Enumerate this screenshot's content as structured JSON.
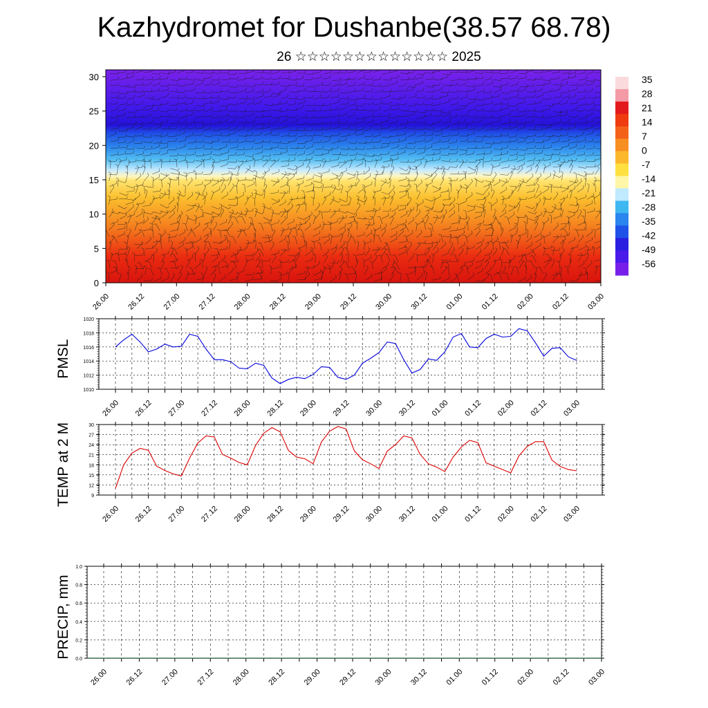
{
  "title": "Kazhydromet for Dushanbe(38.57 68.78)",
  "subtitle": "26 ☆☆☆☆☆☆☆☆☆☆☆☆☆ 2025",
  "colors": {
    "pmsl_line": "#0000dd",
    "temp_line": "#dd0000",
    "grid": "#000000"
  },
  "chart_data": [
    {
      "type": "heatmap",
      "name": "cross-section",
      "y_ticks": [
        0,
        5,
        10,
        15,
        20,
        25,
        30
      ],
      "ylim": [
        0,
        31
      ],
      "x_ticks": [
        "26.00",
        "26.12",
        "27.00",
        "27.12",
        "28.00",
        "28.12",
        "29.00",
        "29.12",
        "30.00",
        "30.12",
        "01.00",
        "01.12",
        "02.00",
        "02.12",
        "03.00"
      ],
      "colorbar": {
        "labels": [
          "35",
          "28",
          "21",
          "14",
          "7",
          "0",
          "-7",
          "-14",
          "-21",
          "-28",
          "-35",
          "-42",
          "-49",
          "-56"
        ],
        "stops": [
          "#fadadd",
          "#f39aa6",
          "#e31a1c",
          "#f03a10",
          "#f4621a",
          "#f88f22",
          "#fcb82c",
          "#ffe040",
          "#fff6a8",
          "#bfeaff",
          "#3fb8f2",
          "#2a85ee",
          "#1f52e8",
          "#2a1fe0",
          "#4a1aeb",
          "#7820ea"
        ]
      },
      "field_note": "temperature by level; warm near bottom, cold aloft"
    },
    {
      "type": "line",
      "ylabel": "PMSL",
      "ylim": [
        1010,
        1020
      ],
      "y_ticks": [
        1010,
        1012,
        1014,
        1016,
        1018,
        1020
      ],
      "x_ticks": [
        "26.00",
        "26.12",
        "27.00",
        "27.12",
        "28.00",
        "28.12",
        "29.00",
        "29.12",
        "30.00",
        "30.12",
        "01.00",
        "01.12",
        "02.00",
        "02.12",
        "03.00"
      ],
      "series": [
        {
          "values": [
            1016.0,
            1017.0,
            1017.8,
            1016.7,
            1015.3,
            1015.7,
            1016.4,
            1016.0,
            1016.1,
            1017.8,
            1017.5,
            1015.7,
            1014.2,
            1014.2,
            1013.9,
            1013.0,
            1012.9,
            1013.7,
            1013.4,
            1011.6,
            1010.8,
            1011.4,
            1011.7,
            1011.5,
            1012.1,
            1013.2,
            1013.1,
            1011.7,
            1011.4,
            1012.0,
            1013.7,
            1014.4,
            1015.2,
            1016.7,
            1016.5,
            1014.2,
            1012.3,
            1012.8,
            1014.3,
            1014.1,
            1015.3,
            1017.4,
            1017.9,
            1016.0,
            1015.9,
            1017.2,
            1017.8,
            1017.4,
            1017.5,
            1018.6,
            1018.3,
            1016.6,
            1014.7,
            1015.8,
            1015.9,
            1014.6,
            1014.1
          ]
        }
      ]
    },
    {
      "type": "line",
      "ylabel": "TEMP at 2 M",
      "ylim": [
        9,
        30
      ],
      "y_ticks": [
        9,
        12,
        15,
        18,
        21,
        24,
        27,
        30
      ],
      "x_ticks": [
        "26.00",
        "26.12",
        "27.00",
        "27.12",
        "28.00",
        "28.12",
        "29.00",
        "29.12",
        "30.00",
        "30.12",
        "01.00",
        "01.12",
        "02.00",
        "02.12",
        "03.00"
      ],
      "series": [
        {
          "values": [
            11.0,
            18.0,
            21.5,
            22.9,
            22.3,
            17.6,
            16.3,
            15.3,
            14.7,
            20.0,
            24.5,
            26.6,
            26.3,
            21.1,
            20.0,
            18.7,
            18.0,
            23.7,
            27.4,
            29.1,
            27.8,
            22.3,
            20.3,
            19.8,
            18.3,
            24.8,
            28.0,
            29.4,
            28.7,
            22.2,
            19.5,
            18.3,
            16.9,
            22.1,
            24.0,
            26.6,
            26.0,
            21.1,
            18.3,
            17.3,
            16.0,
            20.3,
            23.3,
            25.3,
            24.6,
            18.6,
            17.6,
            16.6,
            15.6,
            20.7,
            23.5,
            24.9,
            24.9,
            19.4,
            17.5,
            16.6,
            16.2
          ]
        }
      ]
    },
    {
      "type": "line",
      "ylabel": "PRECIP, mm",
      "ylim": [
        0,
        1
      ],
      "y_ticks": [
        "0.0",
        "0.2",
        "0.4",
        "0.6",
        "0.8",
        "1.0"
      ],
      "x_ticks": [
        "26.00",
        "26.12",
        "27.00",
        "27.12",
        "28.00",
        "28.12",
        "29.00",
        "29.12",
        "30.00",
        "30.12",
        "01.00",
        "01.12",
        "02.00",
        "02.12",
        "03.00"
      ],
      "series": [
        {
          "values": []
        }
      ]
    }
  ]
}
